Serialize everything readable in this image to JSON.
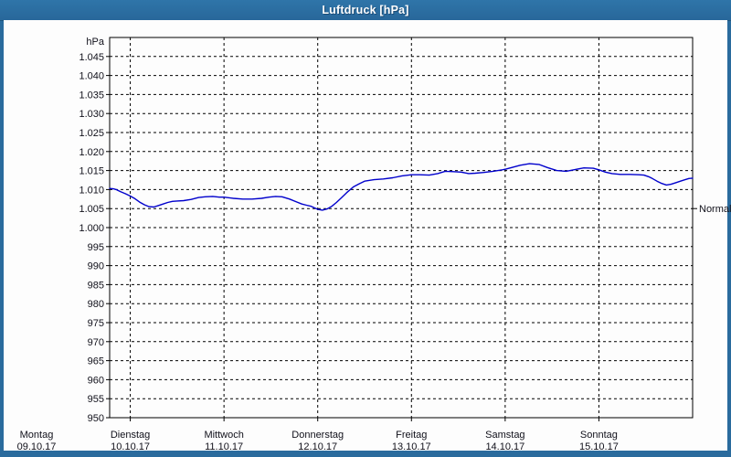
{
  "window": {
    "title": "Luftdruck [hPa]"
  },
  "colors": {
    "frame_blue": "#2a6b9d",
    "title_text": "#ffffff",
    "panel_bg": "#fdfdfd",
    "grid": "#000000",
    "label_text": "#10101a",
    "line_blue": "#0000cc"
  },
  "chart_data": {
    "type": "line",
    "title": "Luftdruck [hPa]",
    "unit_label": "hPa",
    "ylim": [
      950,
      1050
    ],
    "grid": "dashed",
    "legend_position": "none",
    "y_ticks": [
      {
        "v": 950,
        "label": "950"
      },
      {
        "v": 955,
        "label": "955"
      },
      {
        "v": 960,
        "label": "960"
      },
      {
        "v": 965,
        "label": "965"
      },
      {
        "v": 970,
        "label": "970"
      },
      {
        "v": 975,
        "label": "975"
      },
      {
        "v": 980,
        "label": "980"
      },
      {
        "v": 985,
        "label": "985"
      },
      {
        "v": 990,
        "label": "990"
      },
      {
        "v": 995,
        "label": "995"
      },
      {
        "v": 1000,
        "label": "1.000"
      },
      {
        "v": 1005,
        "label": "1.005"
      },
      {
        "v": 1010,
        "label": "1.010"
      },
      {
        "v": 1015,
        "label": "1.015"
      },
      {
        "v": 1020,
        "label": "1.020"
      },
      {
        "v": 1025,
        "label": "1.025"
      },
      {
        "v": 1030,
        "label": "1.030"
      },
      {
        "v": 1035,
        "label": "1.035"
      },
      {
        "v": 1040,
        "label": "1.040"
      },
      {
        "v": 1045,
        "label": "1.045"
      }
    ],
    "x_days": [
      {
        "name": "Montag",
        "date": "09.10.17"
      },
      {
        "name": "Dienstag",
        "date": "10.10.17"
      },
      {
        "name": "Mittwoch",
        "date": "11.10.17"
      },
      {
        "name": "Donnerstag",
        "date": "12.10.17"
      },
      {
        "name": "Freitag",
        "date": "13.10.17"
      },
      {
        "name": "Samstag",
        "date": "14.10.17"
      },
      {
        "name": "Sonntag",
        "date": "15.10.17"
      }
    ],
    "annotation_right": {
      "label": "Normal",
      "value": 1005
    },
    "series": [
      {
        "name": "Luftdruck",
        "color": "#0000cc",
        "points_t_hpa": [
          [
            0.78,
            1010.3
          ],
          [
            0.82,
            1010.2
          ],
          [
            0.85,
            1010.0
          ],
          [
            0.9,
            1009.4
          ],
          [
            0.95,
            1008.9
          ],
          [
            1.0,
            1008.3
          ],
          [
            1.05,
            1007.6
          ],
          [
            1.1,
            1006.7
          ],
          [
            1.15,
            1006.0
          ],
          [
            1.2,
            1005.5
          ],
          [
            1.25,
            1005.4
          ],
          [
            1.3,
            1005.8
          ],
          [
            1.35,
            1006.2
          ],
          [
            1.4,
            1006.6
          ],
          [
            1.45,
            1006.9
          ],
          [
            1.5,
            1007.0
          ],
          [
            1.57,
            1007.1
          ],
          [
            1.65,
            1007.4
          ],
          [
            1.73,
            1007.9
          ],
          [
            1.8,
            1008.1
          ],
          [
            1.88,
            1008.2
          ],
          [
            1.95,
            1008.0
          ],
          [
            2.0,
            1008.0
          ],
          [
            2.1,
            1007.7
          ],
          [
            2.2,
            1007.5
          ],
          [
            2.3,
            1007.5
          ],
          [
            2.4,
            1007.7
          ],
          [
            2.48,
            1008.0
          ],
          [
            2.55,
            1008.2
          ],
          [
            2.62,
            1008.1
          ],
          [
            2.7,
            1007.5
          ],
          [
            2.78,
            1006.7
          ],
          [
            2.83,
            1006.2
          ],
          [
            2.88,
            1005.9
          ],
          [
            2.93,
            1005.6
          ],
          [
            3.0,
            1004.8
          ],
          [
            3.05,
            1004.6
          ],
          [
            3.1,
            1004.9
          ],
          [
            3.15,
            1005.6
          ],
          [
            3.2,
            1006.6
          ],
          [
            3.25,
            1007.8
          ],
          [
            3.31,
            1009.2
          ],
          [
            3.38,
            1010.7
          ],
          [
            3.44,
            1011.5
          ],
          [
            3.5,
            1012.2
          ],
          [
            3.6,
            1012.6
          ],
          [
            3.7,
            1012.8
          ],
          [
            3.8,
            1013.1
          ],
          [
            3.9,
            1013.6
          ],
          [
            4.0,
            1013.9
          ],
          [
            4.09,
            1013.9
          ],
          [
            4.19,
            1013.8
          ],
          [
            4.28,
            1014.2
          ],
          [
            4.36,
            1014.8
          ],
          [
            4.45,
            1014.7
          ],
          [
            4.53,
            1014.6
          ],
          [
            4.61,
            1014.2
          ],
          [
            4.68,
            1014.3
          ],
          [
            4.77,
            1014.5
          ],
          [
            4.87,
            1014.8
          ],
          [
            4.97,
            1015.2
          ],
          [
            5.01,
            1015.4
          ],
          [
            5.07,
            1015.8
          ],
          [
            5.16,
            1016.4
          ],
          [
            5.26,
            1016.8
          ],
          [
            5.36,
            1016.6
          ],
          [
            5.45,
            1015.8
          ],
          [
            5.55,
            1015.0
          ],
          [
            5.65,
            1014.8
          ],
          [
            5.75,
            1015.3
          ],
          [
            5.84,
            1015.7
          ],
          [
            5.94,
            1015.6
          ],
          [
            6.0,
            1015.2
          ],
          [
            6.07,
            1014.6
          ],
          [
            6.14,
            1014.2
          ],
          [
            6.23,
            1014.0
          ],
          [
            6.33,
            1014.0
          ],
          [
            6.43,
            1013.9
          ],
          [
            6.48,
            1013.8
          ],
          [
            6.53,
            1013.4
          ],
          [
            6.57,
            1012.9
          ],
          [
            6.62,
            1012.2
          ],
          [
            6.67,
            1011.6
          ],
          [
            6.72,
            1011.2
          ],
          [
            6.77,
            1011.4
          ],
          [
            6.82,
            1011.8
          ],
          [
            6.87,
            1012.2
          ],
          [
            6.92,
            1012.6
          ],
          [
            6.96,
            1012.9
          ],
          [
            7.0,
            1013.0
          ]
        ]
      }
    ]
  }
}
